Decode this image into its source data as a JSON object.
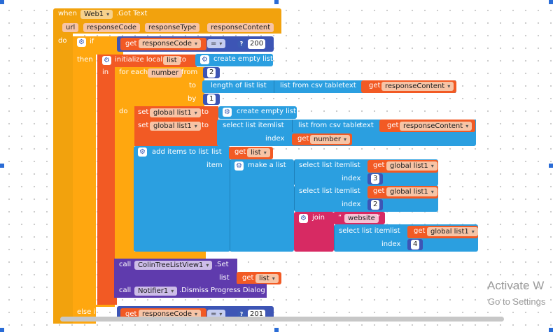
{
  "colors": {
    "event": "#f2a20d",
    "control": "#ffa70f",
    "variable": "#f25a24",
    "list": "#2b9fe0",
    "text": "#d72a63",
    "math": "#3d55b5",
    "component": "#5f3bad",
    "pill": "#f7c4a6"
  },
  "event": {
    "when": "when",
    "component": "Web1",
    "event": ".Got Text",
    "params": [
      "url",
      "responseCode",
      "responseType",
      "responseContent"
    ],
    "do": "do"
  },
  "if_block": {
    "if": "if",
    "then": "then",
    "else_if": "else if",
    "get": "get",
    "var": "responseCode",
    "op": "=",
    "value": "200",
    "value2": "201"
  },
  "init_local": {
    "label": "initialize local",
    "name": "list",
    "to": "to",
    "in": "in",
    "create_empty": "create empty list"
  },
  "for_each": {
    "label": "for each",
    "var": "number",
    "from": "from",
    "from_val": "2",
    "to": "to",
    "by": "by",
    "by_val": "1",
    "do": "do",
    "length_of_list": "length of list",
    "list_kw": "list",
    "csv": "list from csv table",
    "text_kw": "text",
    "get": "get",
    "response": "responseContent"
  },
  "set1": {
    "set": "set",
    "var": "global list1",
    "to": "to",
    "create_empty": "create empty list"
  },
  "set2": {
    "set": "set",
    "var": "global list1",
    "to": "to",
    "select": "select list item",
    "list_kw": "list",
    "index_kw": "index",
    "csv": "list from csv table",
    "text_kw": "text",
    "get": "get",
    "response": "responseContent",
    "number": "number"
  },
  "add_items": {
    "label": "add items to list",
    "list_kw": "list",
    "get": "get",
    "list_var": "list",
    "item": "item",
    "make_list": "make a list",
    "select": "select list item",
    "index_kw": "index",
    "global_list1": "global list1",
    "idx1": "3",
    "idx2": "2",
    "join": "join",
    "quote": "“",
    "quote_close": "”",
    "website": "website",
    "idx3": "4"
  },
  "call1": {
    "call": "call",
    "component": "ColinTreeListView1",
    "method": ".Set",
    "list_kw": "list",
    "get": "get",
    "var": "list"
  },
  "call2": {
    "call": "call",
    "component": "Notifier1",
    "method": ".Dismiss Progress Dialog"
  },
  "watermark": {
    "line1": "Activate W",
    "line2": "Go to Settings"
  }
}
